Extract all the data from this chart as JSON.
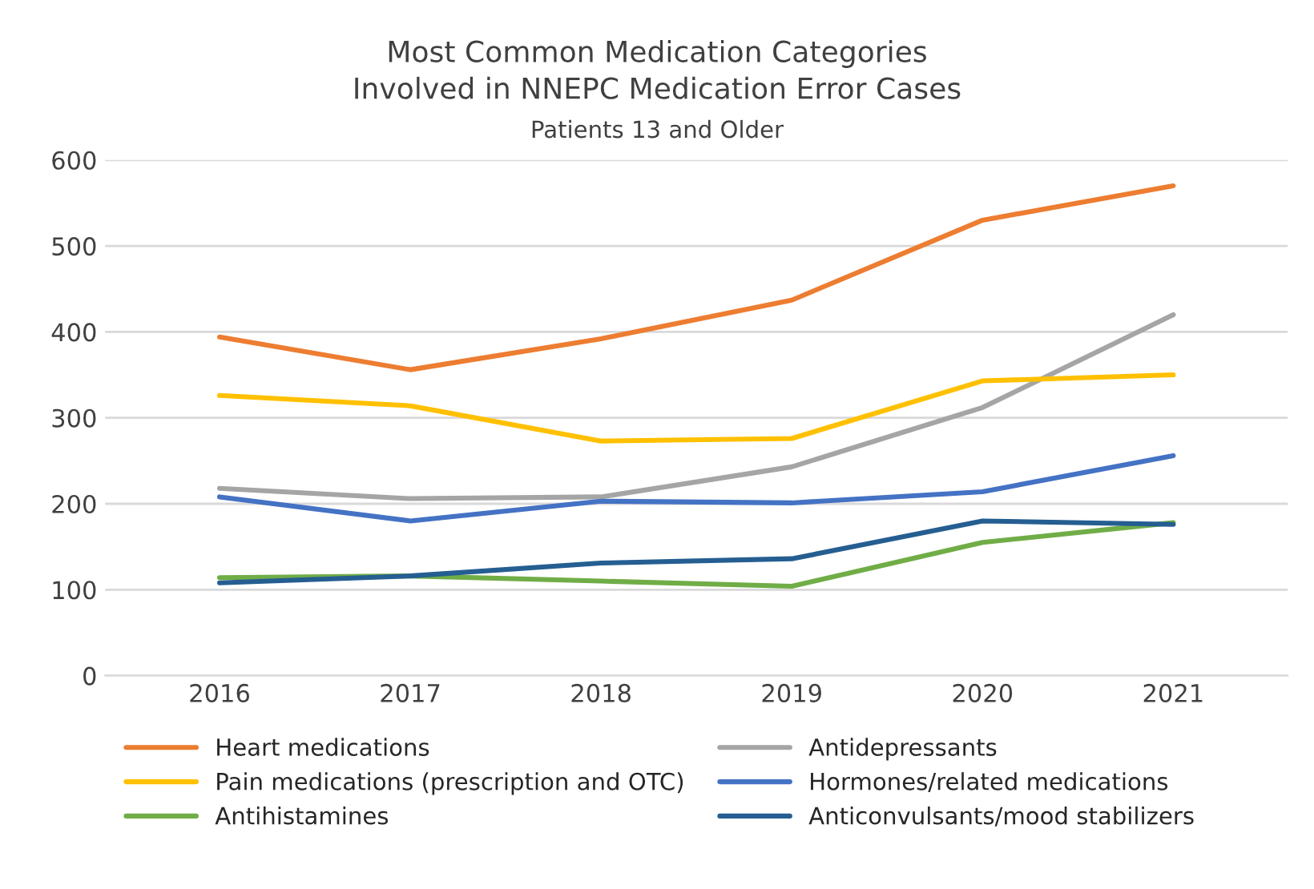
{
  "chart_data": {
    "type": "line",
    "title": "Most Common Medication Categories\nInvolved in NNEPC Medication Error Cases",
    "subtitle": "Patients 13 and Older",
    "categories": [
      "2016",
      "2017",
      "2018",
      "2019",
      "2020",
      "2021"
    ],
    "series": [
      {
        "name": "Heart medications",
        "color": "#ed7d31",
        "values": [
          394,
          356,
          392,
          437,
          530,
          570
        ]
      },
      {
        "name": "Antidepressants",
        "color": "#a5a5a5",
        "values": [
          218,
          206,
          208,
          243,
          312,
          420
        ]
      },
      {
        "name": "Pain medications (prescription and OTC)",
        "color": "#ffc000",
        "values": [
          326,
          314,
          273,
          276,
          343,
          350
        ]
      },
      {
        "name": "Hormones/related medications",
        "color": "#4472c4",
        "values": [
          208,
          180,
          203,
          201,
          214,
          256
        ]
      },
      {
        "name": "Antihistamines",
        "color": "#70ad47",
        "values": [
          114,
          116,
          110,
          104,
          155,
          178
        ]
      },
      {
        "name": "Anticonvulsants/mood stabilizers",
        "color": "#255e91",
        "values": [
          108,
          116,
          131,
          136,
          180,
          176
        ]
      }
    ],
    "ylim": [
      0,
      600
    ],
    "yticks": [
      0,
      100,
      200,
      300,
      400,
      500,
      600
    ],
    "grid": "y",
    "legend": "bottom",
    "marker": "none",
    "line_style": "solid"
  }
}
